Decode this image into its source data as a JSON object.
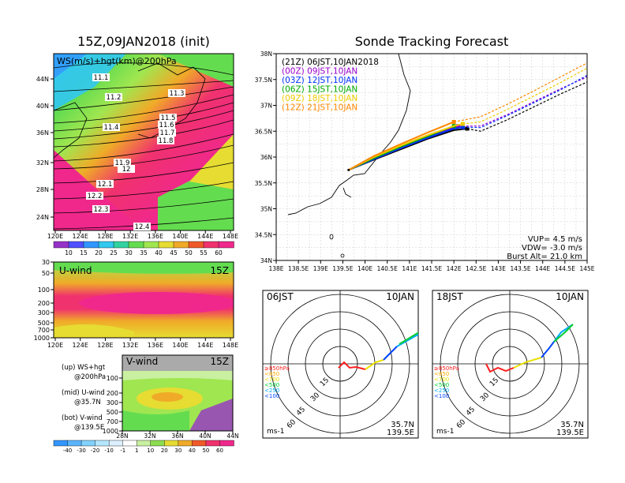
{
  "chart_data": [
    {
      "type": "heatmap",
      "title": "15Z,09JAN2018 (init)",
      "overlay_label": "WS(m/s)+hgt(km)@200hPa",
      "x_ticks": [
        "120E",
        "124E",
        "128E",
        "132E",
        "136E",
        "140E",
        "144E",
        "148E"
      ],
      "y_ticks": [
        "44N",
        "40N",
        "36N",
        "32N",
        "28N",
        "24N"
      ],
      "xlim": [
        120,
        150
      ],
      "ylim": [
        22,
        47
      ],
      "contour_labels": [
        "11.1",
        "11.2",
        "11.3",
        "11.4",
        "11.5",
        "11.6",
        "11.7",
        "11.8",
        "11.9",
        "12",
        "12.1",
        "12.2",
        "12.3",
        "12.4"
      ],
      "colorbar_ticks": [
        "10",
        "15",
        "20",
        "25",
        "30",
        "35",
        "40",
        "45",
        "50",
        "55",
        "60"
      ],
      "colorbar_colors": [
        "#9632c8",
        "#5050ff",
        "#3296ff",
        "#32c8f0",
        "#32d2a0",
        "#64dc50",
        "#a0e650",
        "#e6dc32",
        "#f0aa28",
        "#f05a28",
        "#f0326e",
        "#f0288c"
      ]
    },
    {
      "type": "heatmap",
      "label": "U-wind",
      "time": "15Z",
      "y_ticks": [
        "30",
        "50",
        "100",
        "200",
        "300",
        "500",
        "700",
        "1000"
      ],
      "x_ticks": [
        "120E",
        "124E",
        "128E",
        "132E",
        "136E",
        "140E",
        "144E",
        "148E"
      ]
    },
    {
      "type": "heatmap",
      "label": "V-wind",
      "time": "15Z",
      "y_ticks": [
        "100",
        "200",
        "300",
        "500",
        "700",
        "1000"
      ],
      "x_ticks": [
        "28N",
        "32N",
        "36N",
        "40N",
        "44N"
      ],
      "colorbar_ticks": [
        "-40",
        "-30",
        "-20",
        "-10",
        "-1",
        "1",
        "10",
        "20",
        "30",
        "40",
        "50",
        "60"
      ],
      "colorbar_colors": [
        "#3296ff",
        "#5ab4ff",
        "#82d2ff",
        "#b4e6ff",
        "#dcf0ff",
        "#ffffff",
        "#c8f0a0",
        "#8cdc50",
        "#e6dc32",
        "#f0aa28",
        "#f05a28",
        "#f0326e",
        "#f0288c"
      ]
    },
    {
      "type": "line",
      "title": "Sonde Tracking Forecast",
      "x_ticks": [
        "138E",
        "138.5E",
        "139E",
        "139.5E",
        "140E",
        "140.5E",
        "141E",
        "141.5E",
        "142E",
        "142.5E",
        "143E",
        "143.5E",
        "144E",
        "144.5E",
        "145E"
      ],
      "y_ticks": [
        "38N",
        "37.5N",
        "37N",
        "36.5N",
        "36N",
        "35.5N",
        "35N",
        "34.5N",
        "34N"
      ],
      "xlim": [
        138,
        145
      ],
      "ylim": [
        34,
        38
      ],
      "series": [
        {
          "name": "(21Z) 06JST,10JAN2018",
          "color": "#000000",
          "x": [
            139.63,
            140.2,
            140.8,
            141.4,
            142.0,
            142.3
          ],
          "y": [
            35.75,
            35.95,
            36.15,
            36.35,
            36.52,
            36.55
          ],
          "dash_x": [
            142.3,
            142.6,
            143.2,
            143.8,
            144.4,
            145.0
          ],
          "dash_y": [
            36.55,
            36.5,
            36.72,
            36.97,
            37.22,
            37.45
          ]
        },
        {
          "name": "(00Z) 09JST,10JAN",
          "color": "#9900cc",
          "x": [
            139.63,
            140.2,
            140.8,
            141.4,
            142.0,
            142.1
          ],
          "y": [
            35.75,
            35.97,
            36.18,
            36.38,
            36.57,
            36.6
          ],
          "dash_x": [
            142.1,
            142.6,
            143.2,
            143.8,
            144.4,
            145.0
          ],
          "dash_y": [
            36.6,
            36.6,
            36.82,
            37.07,
            37.32,
            37.55
          ]
        },
        {
          "name": "(03Z) 12JST,10JAN",
          "color": "#0033ff",
          "x": [
            139.63,
            140.2,
            140.8,
            141.4,
            142.0,
            142.2
          ],
          "y": [
            35.75,
            35.96,
            36.17,
            36.37,
            36.55,
            36.58
          ],
          "dash_x": [
            142.2,
            142.6,
            143.2,
            143.8,
            144.4,
            145.0
          ],
          "dash_y": [
            36.58,
            36.57,
            36.8,
            37.05,
            37.3,
            37.58
          ]
        },
        {
          "name": "(06Z) 15JST,10JAN",
          "color": "#00aa00",
          "x": [
            139.63,
            140.2,
            140.8,
            141.4,
            142.0
          ],
          "y": [
            35.75,
            35.98,
            36.2,
            36.4,
            36.6
          ]
        },
        {
          "name": "(09Z) 18JST,10JAN",
          "color": "#eecc00",
          "x": [
            139.63,
            140.2,
            140.8,
            141.4,
            142.0,
            142.2
          ],
          "y": [
            35.75,
            36.0,
            36.22,
            36.42,
            36.6,
            36.64
          ],
          "dash_x": [
            142.2,
            142.6,
            143.2,
            143.8,
            144.4,
            145.0
          ],
          "dash_y": [
            36.64,
            36.68,
            36.92,
            37.18,
            37.44,
            37.72
          ]
        },
        {
          "name": "(12Z) 21JST,10JAN",
          "color": "#ff8800",
          "x": [
            139.63,
            140.2,
            140.8,
            141.4,
            142.0
          ],
          "y": [
            35.75,
            36.02,
            36.25,
            36.47,
            36.68
          ],
          "dash_x": [
            142.0,
            142.6,
            143.2,
            143.8,
            144.4,
            145.0
          ],
          "dash_y": [
            36.68,
            36.78,
            37.02,
            37.28,
            37.55,
            37.82
          ]
        }
      ],
      "params": [
        "VUP= 4.5 m/s",
        "VDW= -3.0 m/s",
        "Burst Alt= 21.0 km"
      ]
    },
    {
      "type": "scatter",
      "subtype": "hodograph",
      "time_label": "06JST",
      "date_label": "10JAN",
      "ring_labels": [
        "15",
        "30",
        "45",
        "60"
      ],
      "legend": [
        "≥850hPa",
        "<850",
        "<700",
        "<500",
        "<250",
        "<100"
      ],
      "legend_colors": [
        "#ff2020",
        "#ffaa00",
        "#e8e000",
        "#00cc33",
        "#00aaff",
        "#0044ff"
      ],
      "location": [
        "35.7N",
        "139.5E"
      ],
      "unit": "ms-1"
    },
    {
      "type": "scatter",
      "subtype": "hodograph",
      "time_label": "18JST",
      "date_label": "10JAN",
      "ring_labels": [
        "15",
        "30",
        "45",
        "60"
      ],
      "legend": [
        "≥850hPa",
        "<850",
        "<700",
        "<500",
        "<250",
        "<100"
      ],
      "legend_colors": [
        "#ff2020",
        "#ffaa00",
        "#e8e000",
        "#00cc33",
        "#00aaff",
        "#0044ff"
      ],
      "location": [
        "35.7N",
        "139.5E"
      ],
      "unit": "ms-1"
    }
  ],
  "side_notes": {
    "up": "(up) WS+hgt",
    "up2": "@200hPa",
    "mid": "(mid) U-wind",
    "mid2": "@35.7N",
    "bot": "(bot) V-wind",
    "bot2": "@139.5E"
  }
}
